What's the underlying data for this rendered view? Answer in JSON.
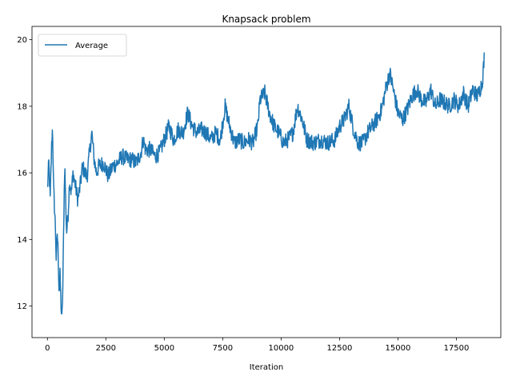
{
  "chart_data": {
    "type": "line",
    "title": "Knapsack problem",
    "xlabel": "Iteration",
    "ylabel": "",
    "xlim": [
      -660,
      19400
    ],
    "ylim": [
      11.05,
      20.4
    ],
    "xticks": [
      0,
      2500,
      5000,
      7500,
      10000,
      12500,
      15000,
      17500
    ],
    "yticks": [
      12,
      14,
      16,
      18,
      20
    ],
    "grid": false,
    "legend": {
      "position": "top-left",
      "entries": [
        "Average"
      ]
    },
    "colors": {
      "series": "#1f77b4"
    },
    "series": [
      {
        "name": "Average",
        "noise": 0.25,
        "points": [
          [
            0,
            15.5
          ],
          [
            60,
            16.3
          ],
          [
            120,
            15.2
          ],
          [
            180,
            16.8
          ],
          [
            220,
            17.4
          ],
          [
            260,
            15.6
          ],
          [
            300,
            15.0
          ],
          [
            340,
            14.4
          ],
          [
            380,
            13.3
          ],
          [
            420,
            14.2
          ],
          [
            460,
            13.6
          ],
          [
            500,
            12.4
          ],
          [
            540,
            12.9
          ],
          [
            580,
            12.1
          ],
          [
            620,
            11.5
          ],
          [
            660,
            12.6
          ],
          [
            700,
            14.6
          ],
          [
            740,
            16.3
          ],
          [
            780,
            15.2
          ],
          [
            820,
            14.2
          ],
          [
            880,
            14.7
          ],
          [
            950,
            15.8
          ],
          [
            1020,
            15.4
          ],
          [
            1100,
            16.0
          ],
          [
            1200,
            15.6
          ],
          [
            1300,
            15.2
          ],
          [
            1400,
            15.6
          ],
          [
            1500,
            16.2
          ],
          [
            1600,
            16.0
          ],
          [
            1700,
            15.9
          ],
          [
            1800,
            16.6
          ],
          [
            1900,
            17.2
          ],
          [
            2000,
            16.4
          ],
          [
            2100,
            16.0
          ],
          [
            2200,
            16.2
          ],
          [
            2400,
            16.3
          ],
          [
            2600,
            15.9
          ],
          [
            2800,
            16.2
          ],
          [
            3000,
            16.3
          ],
          [
            3200,
            16.5
          ],
          [
            3400,
            16.4
          ],
          [
            3600,
            16.4
          ],
          [
            3800,
            16.3
          ],
          [
            4000,
            16.6
          ],
          [
            4100,
            17.0
          ],
          [
            4200,
            16.7
          ],
          [
            4400,
            16.7
          ],
          [
            4600,
            16.5
          ],
          [
            4800,
            16.6
          ],
          [
            5000,
            17.0
          ],
          [
            5200,
            17.4
          ],
          [
            5400,
            17.0
          ],
          [
            5600,
            17.3
          ],
          [
            5800,
            17.2
          ],
          [
            6000,
            17.8
          ],
          [
            6200,
            17.4
          ],
          [
            6400,
            17.2
          ],
          [
            6600,
            17.3
          ],
          [
            6800,
            17.2
          ],
          [
            7000,
            17.0
          ],
          [
            7200,
            17.2
          ],
          [
            7400,
            17.0
          ],
          [
            7600,
            18.0
          ],
          [
            7800,
            17.4
          ],
          [
            8000,
            16.9
          ],
          [
            8200,
            17.0
          ],
          [
            8400,
            16.9
          ],
          [
            8600,
            17.0
          ],
          [
            8800,
            16.9
          ],
          [
            9000,
            17.4
          ],
          [
            9100,
            18.2
          ],
          [
            9300,
            18.4
          ],
          [
            9500,
            17.8
          ],
          [
            9700,
            17.4
          ],
          [
            9900,
            17.2
          ],
          [
            10100,
            16.9
          ],
          [
            10300,
            17.0
          ],
          [
            10500,
            17.2
          ],
          [
            10700,
            18.0
          ],
          [
            10900,
            17.6
          ],
          [
            11100,
            17.0
          ],
          [
            11400,
            16.9
          ],
          [
            11700,
            17.0
          ],
          [
            12000,
            16.9
          ],
          [
            12300,
            17.0
          ],
          [
            12500,
            17.4
          ],
          [
            12700,
            17.6
          ],
          [
            12900,
            18.0
          ],
          [
            13100,
            17.3
          ],
          [
            13300,
            16.9
          ],
          [
            13500,
            16.9
          ],
          [
            13700,
            17.2
          ],
          [
            13900,
            17.4
          ],
          [
            14100,
            17.6
          ],
          [
            14300,
            17.9
          ],
          [
            14500,
            18.6
          ],
          [
            14650,
            19.0
          ],
          [
            14800,
            18.5
          ],
          [
            15000,
            17.8
          ],
          [
            15200,
            17.6
          ],
          [
            15400,
            17.9
          ],
          [
            15600,
            18.3
          ],
          [
            15800,
            18.5
          ],
          [
            16000,
            18.2
          ],
          [
            16200,
            18.1
          ],
          [
            16400,
            18.5
          ],
          [
            16600,
            18.0
          ],
          [
            16800,
            18.2
          ],
          [
            17000,
            18.1
          ],
          [
            17200,
            18.0
          ],
          [
            17400,
            18.2
          ],
          [
            17600,
            18.0
          ],
          [
            17800,
            18.4
          ],
          [
            18000,
            18.0
          ],
          [
            18200,
            18.5
          ],
          [
            18400,
            18.3
          ],
          [
            18600,
            18.7
          ],
          [
            18700,
            19.5
          ]
        ]
      }
    ]
  }
}
